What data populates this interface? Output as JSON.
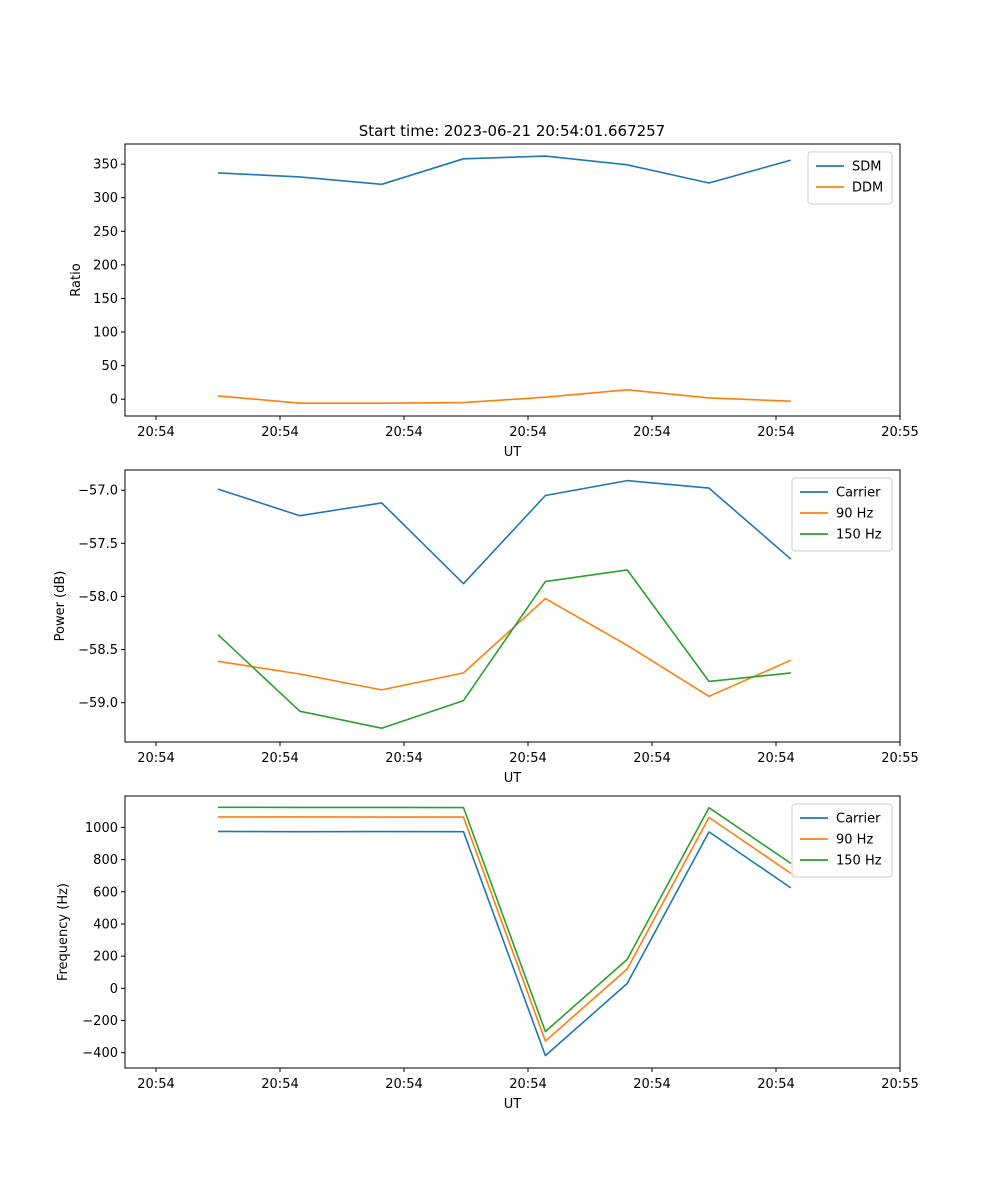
{
  "figure": {
    "title": "Start time: 2023-06-21 20:54:01.667257"
  },
  "chart_data": [
    {
      "type": "line",
      "title": "Start time: 2023-06-21 20:54:01.667257",
      "xlabel": "UT",
      "ylabel": "Ratio",
      "x": [
        0.5,
        1.16,
        1.82,
        2.48,
        3.14,
        3.8,
        4.46,
        5.12
      ],
      "xlim": [
        -0.25,
        6.0
      ],
      "xticks": [
        0,
        1,
        2,
        3,
        4,
        5,
        6
      ],
      "xtick_labels": [
        "20:54",
        "20:54",
        "20:54",
        "20:54",
        "20:54",
        "20:54",
        "20:55"
      ],
      "ylim": [
        -25,
        380
      ],
      "yticks": [
        0,
        50,
        100,
        150,
        200,
        250,
        300,
        350
      ],
      "ytick_labels": [
        "0",
        "50",
        "100",
        "150",
        "200",
        "250",
        "300",
        "350"
      ],
      "legend": "top-right",
      "grid": false,
      "series": [
        {
          "name": "SDM",
          "color": "#1f77b4",
          "values": [
            337,
            331,
            320,
            358,
            362,
            349,
            322,
            356
          ]
        },
        {
          "name": "DDM",
          "color": "#ff7f0e",
          "values": [
            5,
            -6,
            -6,
            -5,
            3,
            14,
            2,
            -3
          ]
        }
      ]
    },
    {
      "type": "line",
      "xlabel": "UT",
      "ylabel": "Power (dB)",
      "x": [
        0.5,
        1.16,
        1.82,
        2.48,
        3.14,
        3.8,
        4.46,
        5.12
      ],
      "xlim": [
        -0.25,
        6.0
      ],
      "xticks": [
        0,
        1,
        2,
        3,
        4,
        5,
        6
      ],
      "xtick_labels": [
        "20:54",
        "20:54",
        "20:54",
        "20:54",
        "20:54",
        "20:54",
        "20:55"
      ],
      "ylim": [
        -59.37,
        -56.81
      ],
      "yticks": [
        -59.0,
        -58.5,
        -58.0,
        -57.5,
        -57.0
      ],
      "ytick_labels": [
        "−59.0",
        "−58.5",
        "−58.0",
        "−57.5",
        "−57.0"
      ],
      "legend": "top-right",
      "grid": false,
      "series": [
        {
          "name": "Carrier",
          "color": "#1f77b4",
          "values": [
            -56.99,
            -57.24,
            -57.12,
            -57.88,
            -57.05,
            -56.91,
            -56.98,
            -57.65
          ]
        },
        {
          "name": "90 Hz",
          "color": "#ff7f0e",
          "values": [
            -58.61,
            -58.73,
            -58.88,
            -58.72,
            -58.02,
            -58.46,
            -58.94,
            -58.6
          ]
        },
        {
          "name": "150 Hz",
          "color": "#2ca02c",
          "values": [
            -58.36,
            -59.08,
            -59.24,
            -58.98,
            -57.86,
            -57.75,
            -58.8,
            -58.72
          ]
        }
      ]
    },
    {
      "type": "line",
      "xlabel": "UT",
      "ylabel": "Frequency (Hz)",
      "x": [
        0.5,
        1.16,
        1.82,
        2.48,
        3.14,
        3.8,
        4.46,
        5.12
      ],
      "xlim": [
        -0.25,
        6.0
      ],
      "xticks": [
        0,
        1,
        2,
        3,
        4,
        5,
        6
      ],
      "xtick_labels": [
        "20:54",
        "20:54",
        "20:54",
        "20:54",
        "20:54",
        "20:54",
        "20:55"
      ],
      "ylim": [
        -495,
        1195
      ],
      "yticks": [
        -400,
        -200,
        0,
        200,
        400,
        600,
        800,
        1000
      ],
      "ytick_labels": [
        "−400",
        "−200",
        "0",
        "200",
        "400",
        "600",
        "800",
        "1000"
      ],
      "legend": "top-right",
      "grid": false,
      "series": [
        {
          "name": "Carrier",
          "color": "#1f77b4",
          "values": [
            975,
            973,
            974,
            973,
            -418,
            30,
            972,
            624
          ]
        },
        {
          "name": "90 Hz",
          "color": "#ff7f0e",
          "values": [
            1065,
            1065,
            1064,
            1064,
            -328,
            120,
            1062,
            714
          ]
        },
        {
          "name": "150 Hz",
          "color": "#2ca02c",
          "values": [
            1125,
            1124,
            1124,
            1123,
            -268,
            180,
            1122,
            776
          ]
        }
      ]
    }
  ]
}
